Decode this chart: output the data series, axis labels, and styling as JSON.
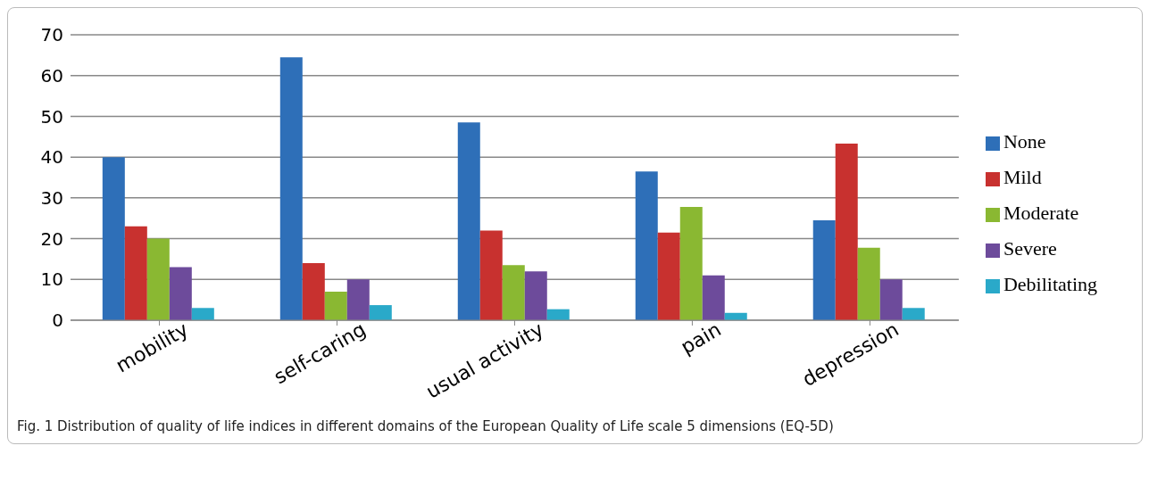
{
  "chart_data": {
    "type": "bar",
    "categories": [
      "mobility",
      "self-caring",
      "usual activity",
      "pain",
      "depression"
    ],
    "series": [
      {
        "name": "None",
        "color": "#2e6fb8",
        "values": [
          40,
          64.5,
          48.5,
          36.5,
          24.5
        ]
      },
      {
        "name": "Mild",
        "color": "#c8312f",
        "values": [
          23,
          14,
          22,
          21.5,
          43.3
        ]
      },
      {
        "name": "Moderate",
        "color": "#8ab832",
        "values": [
          20,
          7,
          13.5,
          27.8,
          17.8
        ]
      },
      {
        "name": "Severe",
        "color": "#6d4b9b",
        "values": [
          13,
          10,
          12,
          11,
          10
        ]
      },
      {
        "name": "Debilitating",
        "color": "#2aa9c9",
        "values": [
          3,
          3.7,
          2.7,
          1.8,
          3
        ]
      }
    ],
    "ylim": [
      0,
      70
    ],
    "yticks": [
      0,
      10,
      20,
      30,
      40,
      50,
      60,
      70
    ],
    "grid": "y",
    "legend": "right",
    "annotations": [
      "Fig. 1  Distribution of quality of life indices in different domains of the European Quality of Life scale 5 dimensions (EQ-5D)"
    ]
  }
}
